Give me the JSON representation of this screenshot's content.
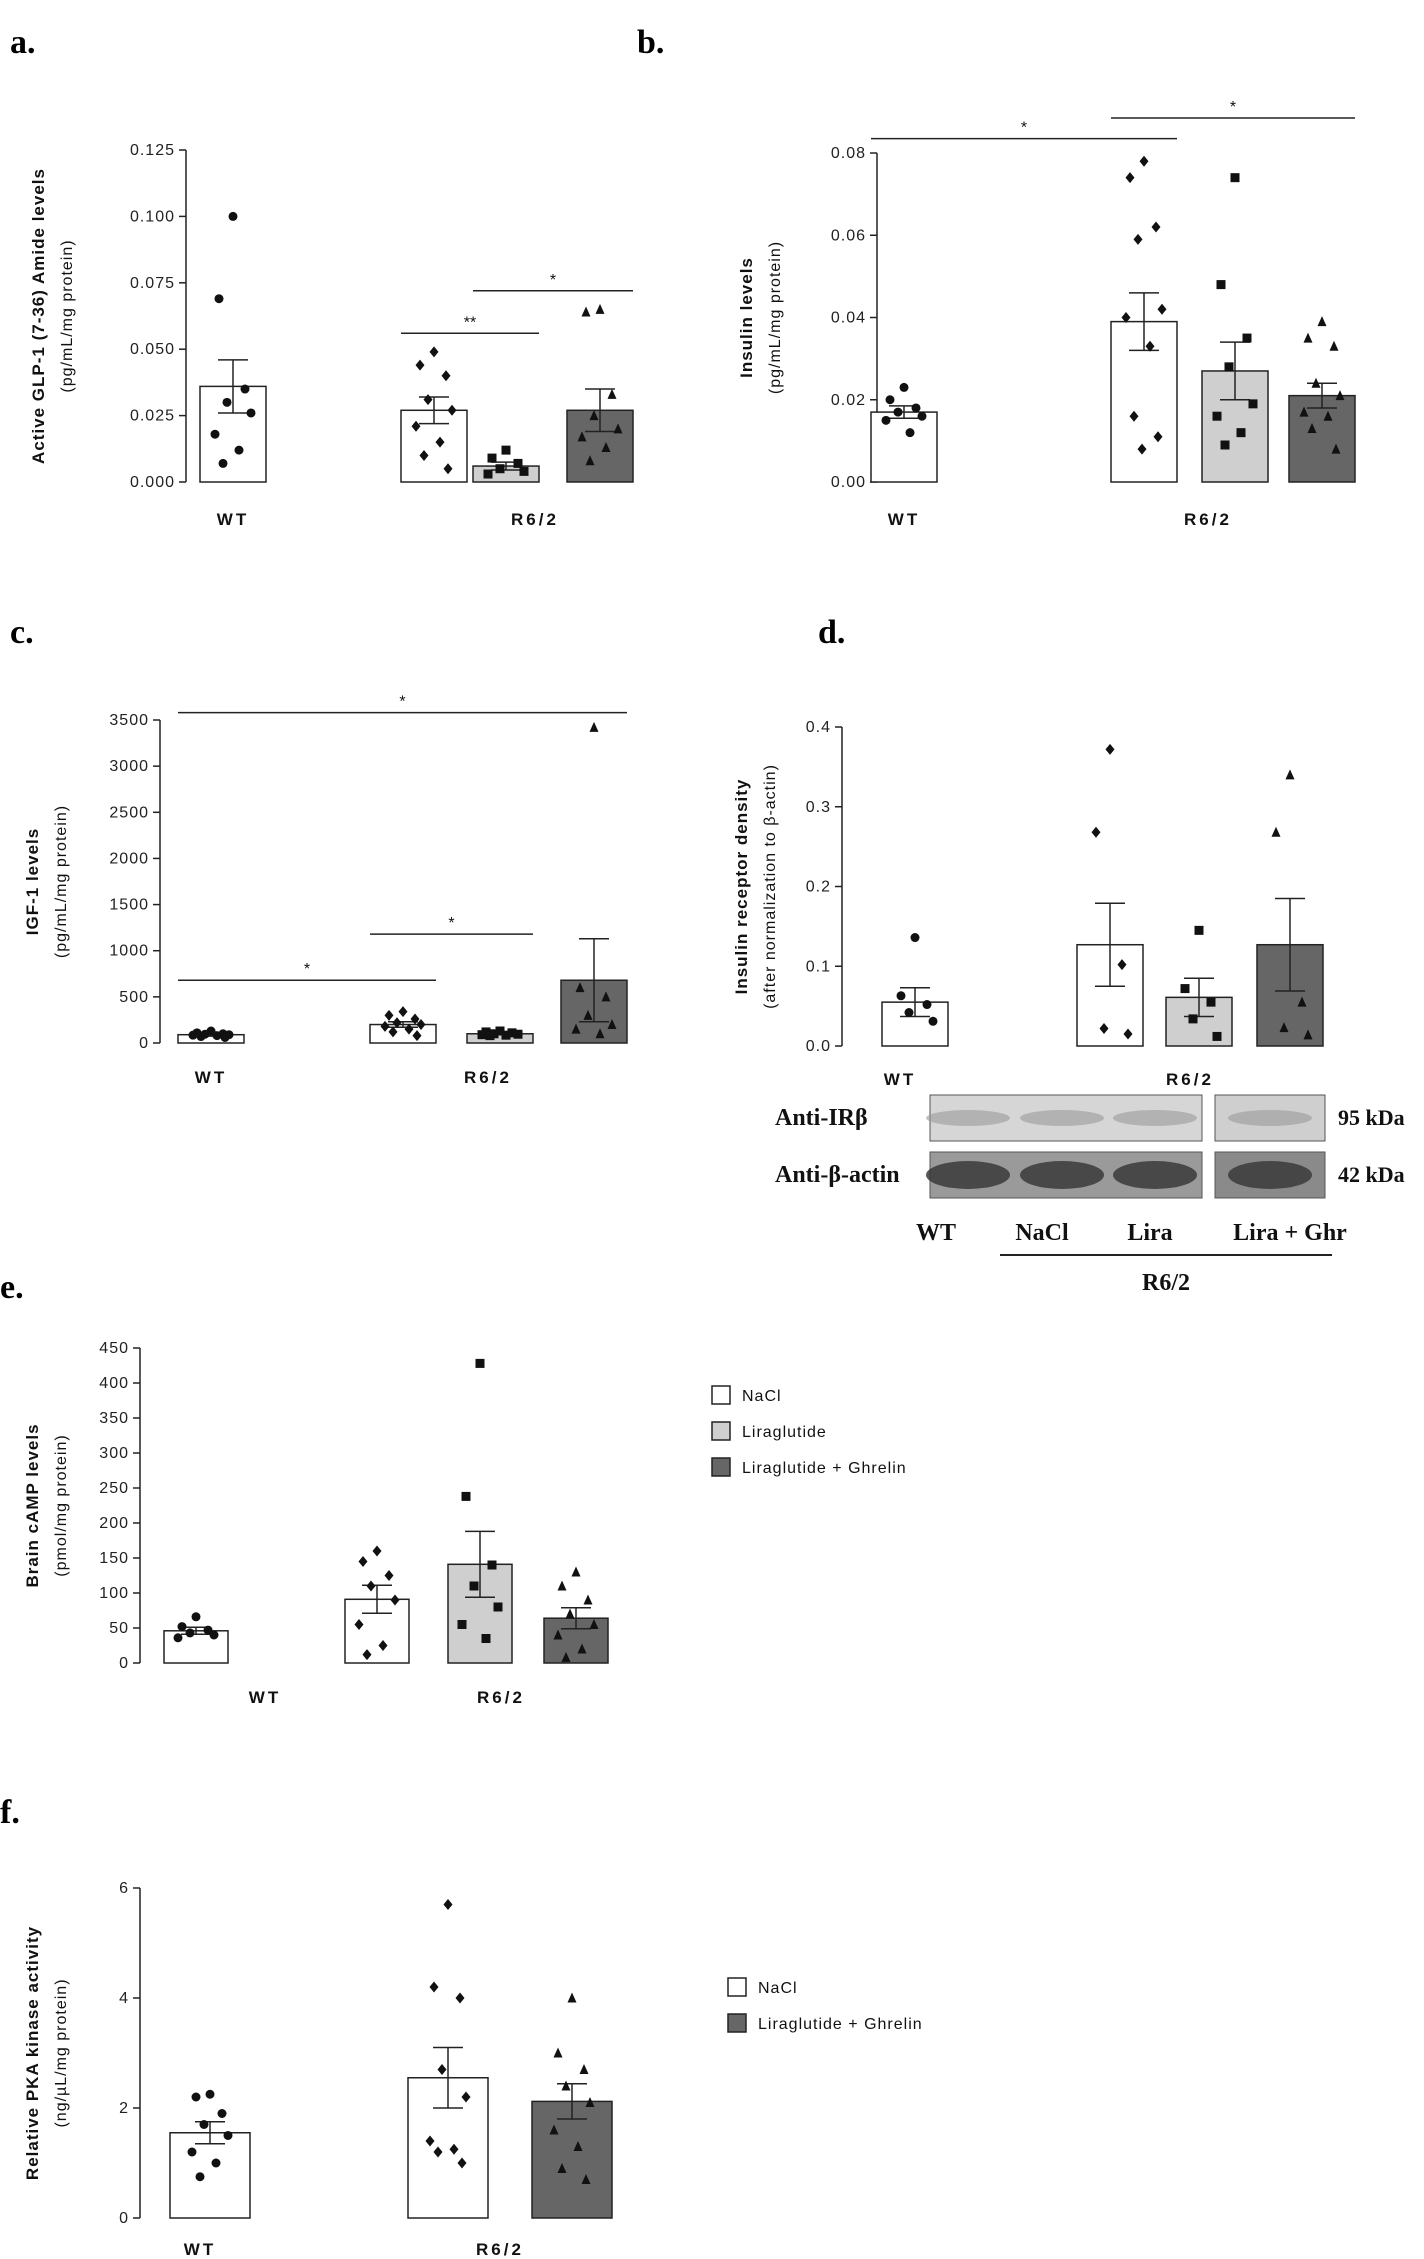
{
  "colors": {
    "nacl": "#ffffff",
    "liraglutide": "#cfcfcf",
    "lira_ghrelin": "#666666",
    "wt": "#ffffff"
  },
  "legend_e": [
    "NaCl",
    "Liraglutide",
    "Liraglutide + Ghrelin"
  ],
  "legend_f": [
    "NaCl",
    "Liraglutide + Ghrelin"
  ],
  "western": {
    "rows": [
      {
        "label": "Anti-IRβ",
        "kda": "95 kDa"
      },
      {
        "label": "Anti-β-actin",
        "kda": "42 kDa"
      }
    ],
    "lanes": [
      "WT",
      "NaCl",
      "Lira",
      "Lira + Ghr"
    ],
    "group": "R6/2"
  },
  "chart_data": [
    {
      "id": "a",
      "type": "bar",
      "panel": "a.",
      "ylabel": "Active GLP-1 (7-36) Amide levels",
      "ylabel2": "(pg/mL/mg protein)",
      "ylim": [
        0,
        0.125
      ],
      "yticks": [
        "0.000",
        "0.025",
        "0.050",
        "0.075",
        "0.100",
        "0.125"
      ],
      "groups": [
        "WT",
        "R6/2"
      ],
      "bars": [
        {
          "group": 0,
          "fill": "#ffffff",
          "value": 0.036,
          "sem": 0.01,
          "marker": "circle",
          "points": [
            0.1,
            0.069,
            0.035,
            0.03,
            0.026,
            0.018,
            0.012,
            0.007
          ]
        },
        {
          "group": 1,
          "fill": "#ffffff",
          "value": 0.027,
          "sem": 0.005,
          "marker": "diamond",
          "points": [
            0.049,
            0.044,
            0.04,
            0.031,
            0.027,
            0.021,
            0.015,
            0.01,
            0.005
          ]
        },
        {
          "group": 1,
          "fill": "#cfcfcf",
          "value": 0.006,
          "sem": 0.0015,
          "marker": "square",
          "points": [
            0.012,
            0.009,
            0.007,
            0.005,
            0.004,
            0.003
          ]
        },
        {
          "group": 1,
          "fill": "#666666",
          "value": 0.027,
          "sem": 0.008,
          "marker": "triangle",
          "points": [
            0.065,
            0.064,
            0.033,
            0.025,
            0.02,
            0.017,
            0.013,
            0.008
          ]
        }
      ],
      "sig": [
        {
          "from": 1,
          "to": 2,
          "y": 0.056,
          "label": "**"
        },
        {
          "from": 2,
          "to": 3,
          "y": 0.072,
          "label": "*"
        }
      ]
    },
    {
      "id": "b",
      "type": "bar",
      "panel": "b.",
      "ylabel": "Insulin levels",
      "ylabel2": "(pg/mL/mg protein)",
      "ylim": [
        0,
        0.08
      ],
      "yticks": [
        "0.00",
        "0.02",
        "0.04",
        "0.06",
        "0.08"
      ],
      "groups": [
        "WT",
        "R6/2"
      ],
      "bars": [
        {
          "group": 0,
          "fill": "#ffffff",
          "value": 0.017,
          "sem": 0.0015,
          "marker": "circle",
          "points": [
            0.023,
            0.02,
            0.018,
            0.017,
            0.016,
            0.015,
            0.012
          ]
        },
        {
          "group": 1,
          "fill": "#ffffff",
          "value": 0.039,
          "sem": 0.007,
          "marker": "diamond",
          "points": [
            0.078,
            0.074,
            0.062,
            0.059,
            0.042,
            0.04,
            0.033,
            0.016,
            0.011,
            0.008
          ]
        },
        {
          "group": 1,
          "fill": "#cfcfcf",
          "value": 0.027,
          "sem": 0.007,
          "marker": "square",
          "points": [
            0.074,
            0.048,
            0.035,
            0.028,
            0.019,
            0.016,
            0.012,
            0.009
          ]
        },
        {
          "group": 1,
          "fill": "#666666",
          "value": 0.021,
          "sem": 0.003,
          "marker": "triangle",
          "points": [
            0.039,
            0.035,
            0.033,
            0.024,
            0.021,
            0.017,
            0.016,
            0.013,
            0.008
          ]
        }
      ],
      "sig": [
        {
          "from": 0,
          "to": 1,
          "y": 0.0835,
          "label": "*"
        },
        {
          "from": 1,
          "to": 3,
          "y": 0.0885,
          "label": "*"
        }
      ]
    },
    {
      "id": "c",
      "type": "bar",
      "panel": "c.",
      "ylabel": "IGF-1 levels",
      "ylabel2": "(pg/mL/mg protein)",
      "ylim": [
        0,
        3500
      ],
      "yticks": [
        "0",
        "500",
        "1000",
        "1500",
        "2000",
        "2500",
        "3000",
        "3500"
      ],
      "groups": [
        "WT",
        "R6/2"
      ],
      "bars": [
        {
          "group": 0,
          "fill": "#ffffff",
          "value": 90,
          "sem": 15,
          "marker": "circle",
          "points": [
            130,
            110,
            100,
            95,
            90,
            85,
            80,
            70,
            60
          ]
        },
        {
          "group": 1,
          "fill": "#ffffff",
          "value": 200,
          "sem": 30,
          "marker": "diamond",
          "points": [
            340,
            300,
            260,
            220,
            200,
            180,
            150,
            120,
            80
          ]
        },
        {
          "group": 1,
          "fill": "#cfcfcf",
          "value": 100,
          "sem": 10,
          "marker": "square",
          "points": [
            130,
            120,
            110,
            100,
            95,
            90,
            85,
            80
          ]
        },
        {
          "group": 1,
          "fill": "#666666",
          "value": 680,
          "sem": 450,
          "marker": "triangle",
          "points": [
            3420,
            600,
            500,
            300,
            200,
            150,
            100
          ]
        }
      ],
      "sig": [
        {
          "from": 0,
          "to": 1,
          "y": 680,
          "label": "*"
        },
        {
          "from": 1,
          "to": 2,
          "y": 1180,
          "label": "*"
        },
        {
          "from": 0,
          "to": 3,
          "y": 3580,
          "label": "*"
        }
      ]
    },
    {
      "id": "d",
      "type": "bar",
      "panel": "d.",
      "ylabel": "Insulin receptor density",
      "ylabel2": "(after normalization to β-actin)",
      "ylim": [
        0,
        0.4
      ],
      "yticks": [
        "0.0",
        "0.1",
        "0.2",
        "0.3",
        "0.4"
      ],
      "groups": [
        "WT",
        "R6/2"
      ],
      "bars": [
        {
          "group": 0,
          "fill": "#ffffff",
          "value": 0.055,
          "sem": 0.018,
          "marker": "circle",
          "points": [
            0.136,
            0.063,
            0.052,
            0.042,
            0.031
          ]
        },
        {
          "group": 1,
          "fill": "#ffffff",
          "value": 0.127,
          "sem": 0.052,
          "marker": "diamond",
          "points": [
            0.372,
            0.268,
            0.102,
            0.022,
            0.015
          ]
        },
        {
          "group": 1,
          "fill": "#cfcfcf",
          "value": 0.061,
          "sem": 0.024,
          "marker": "square",
          "points": [
            0.145,
            0.072,
            0.055,
            0.034,
            0.012
          ]
        },
        {
          "group": 1,
          "fill": "#666666",
          "value": 0.127,
          "sem": 0.058,
          "marker": "triangle",
          "points": [
            0.34,
            0.268,
            0.055,
            0.023,
            0.014
          ]
        }
      ],
      "sig": []
    },
    {
      "id": "e",
      "type": "bar",
      "panel": "e.",
      "ylabel": "Brain cAMP levels",
      "ylabel2": "(pmol/mg protein)",
      "ylim": [
        0,
        450
      ],
      "yticks": [
        "0",
        "50",
        "100",
        "150",
        "200",
        "250",
        "300",
        "350",
        "400",
        "450"
      ],
      "groups": [
        "WT",
        "R6/2"
      ],
      "bars": [
        {
          "group": 0,
          "fill": "#ffffff",
          "value": 46,
          "sem": 5,
          "marker": "circle",
          "points": [
            66,
            52,
            47,
            43,
            40,
            36
          ]
        },
        {
          "group": 1,
          "fill": "#ffffff",
          "value": 91,
          "sem": 20,
          "marker": "diamond",
          "points": [
            160,
            145,
            125,
            110,
            90,
            55,
            25,
            12
          ]
        },
        {
          "group": 1,
          "fill": "#cfcfcf",
          "value": 141,
          "sem": 47,
          "marker": "square",
          "points": [
            428,
            238,
            140,
            110,
            80,
            55,
            35
          ]
        },
        {
          "group": 1,
          "fill": "#666666",
          "value": 64,
          "sem": 15,
          "marker": "triangle",
          "points": [
            130,
            110,
            90,
            70,
            55,
            40,
            20,
            8
          ]
        }
      ],
      "sig": []
    },
    {
      "id": "f",
      "type": "bar",
      "panel": "f.",
      "ylabel": "Relative PKA kinase activity",
      "ylabel2": "(ng/µL/mg protein)",
      "ylim": [
        0,
        6
      ],
      "yticks": [
        "0",
        "2",
        "4",
        "6"
      ],
      "groups": [
        "WT",
        "R6/2"
      ],
      "bars": [
        {
          "group": 0,
          "fill": "#ffffff",
          "value": 1.55,
          "sem": 0.2,
          "marker": "circle",
          "points": [
            2.25,
            2.2,
            1.9,
            1.7,
            1.5,
            1.2,
            1.0,
            0.75
          ]
        },
        {
          "group": 1,
          "fill": "#ffffff",
          "value": 2.55,
          "sem": 0.55,
          "marker": "diamond",
          "points": [
            5.7,
            4.2,
            4.0,
            2.7,
            2.2,
            1.4,
            1.25,
            1.2,
            1.0
          ]
        },
        {
          "group": 1,
          "fill": "#666666",
          "value": 2.12,
          "sem": 0.32,
          "marker": "triangle",
          "points": [
            4.0,
            3.0,
            2.7,
            2.4,
            2.1,
            1.6,
            1.3,
            0.9,
            0.7
          ]
        }
      ],
      "sig": []
    }
  ]
}
